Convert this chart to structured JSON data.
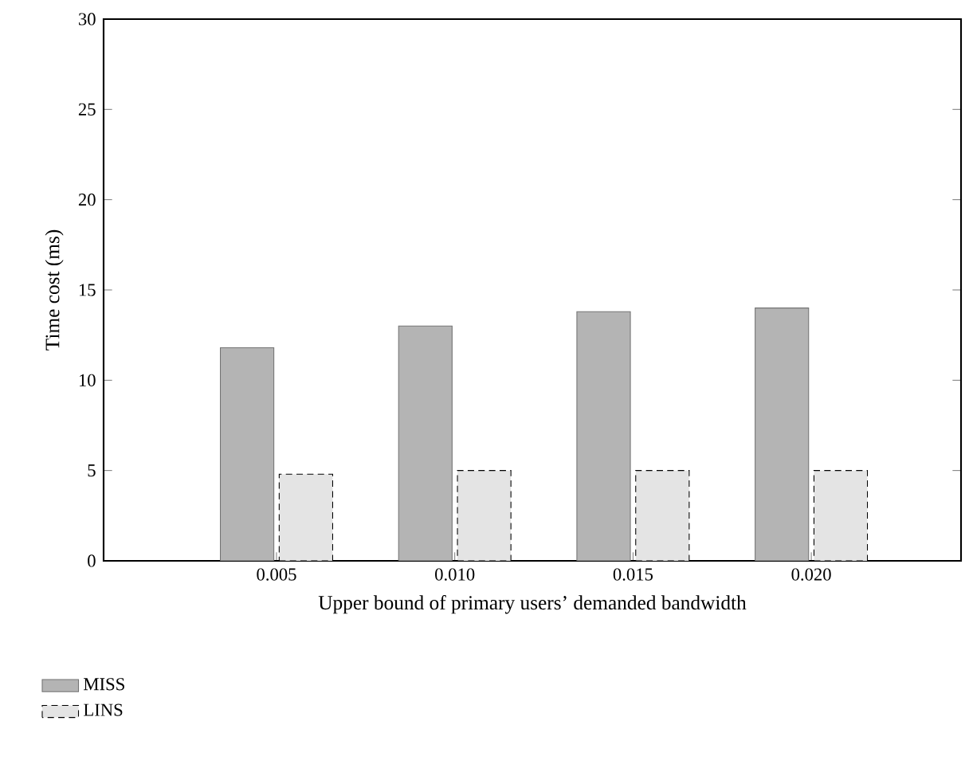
{
  "chart_data": {
    "type": "bar",
    "xlabel": "Upper bound of primary users’ demanded bandwidth",
    "ylabel": "Time cost (ms)",
    "categories": [
      "0.005",
      "0.010",
      "0.015",
      "0.020"
    ],
    "series": [
      {
        "name": "MISS",
        "color": "#b4b4b4",
        "values": [
          11.8,
          13.0,
          13.8,
          14.0
        ]
      },
      {
        "name": "LINS",
        "color": "#e4e4e4",
        "values": [
          4.8,
          5.0,
          5.0,
          5.0
        ]
      }
    ],
    "ylim": [
      0,
      30
    ],
    "yticks": [
      0,
      5,
      10,
      15,
      20,
      25,
      30
    ],
    "legend": "bottom left"
  }
}
